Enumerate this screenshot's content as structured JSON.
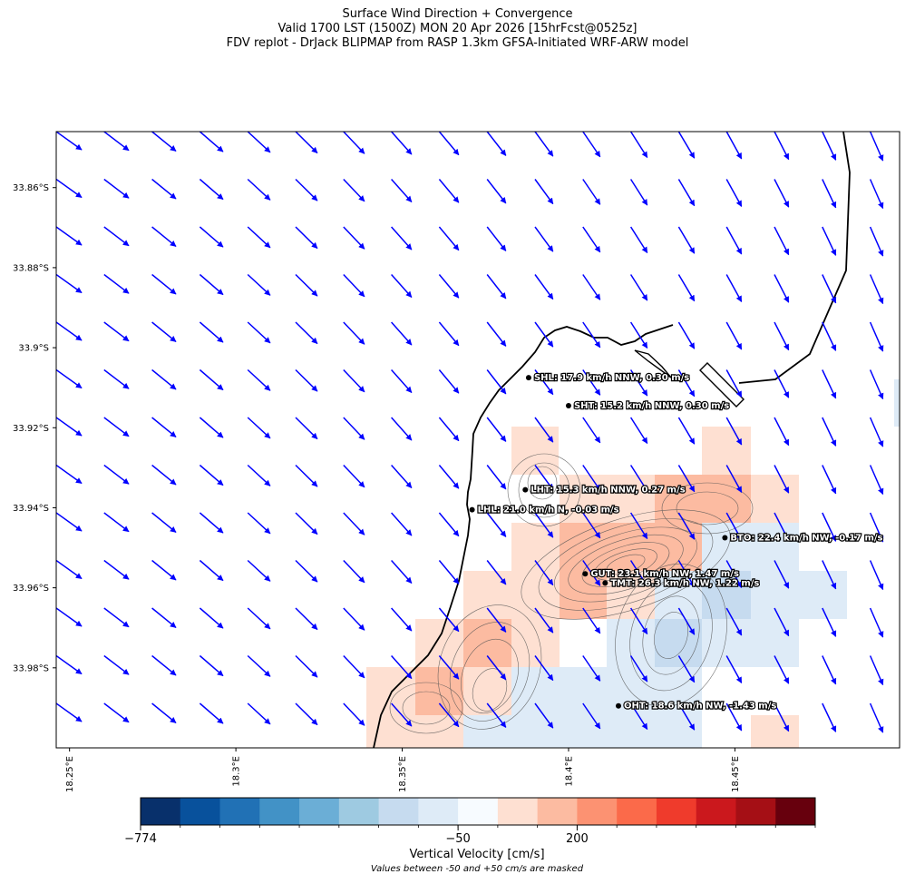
{
  "title": {
    "line1": "Surface Wind Direction + Convergence",
    "line2": "Valid 1700 LST (1500Z) MON 20 Apr 2026 [15hrFcst@0525z]",
    "line3": "FDV replot - DrJack BLIPMAP from RASP 1.3km GFSA-Initiated WRF-ARW model"
  },
  "axes": {
    "lat_ticks": [
      "33.86°S",
      "33.88°S",
      "33.9°S",
      "33.92°S",
      "33.94°S",
      "33.96°S",
      "33.98°S"
    ],
    "lat_values": [
      -33.86,
      -33.88,
      -33.9,
      -33.92,
      -33.94,
      -33.96,
      -33.98
    ],
    "lon_ticks": [
      "18.25°E",
      "18.3°E",
      "18.35°E",
      "18.4°E",
      "18.45°E"
    ],
    "lon_values": [
      18.25,
      18.3,
      18.35,
      18.4,
      18.45
    ],
    "lon_range": [
      18.246,
      18.4995
    ],
    "lat_range": [
      -34.0,
      -33.846
    ]
  },
  "stations": [
    {
      "id": "SHL",
      "label": "SHL: 17.9 km/h NNW, 0.30 m/s",
      "lon": 18.388,
      "lat": -33.9075
    },
    {
      "id": "SHT",
      "label": "SHT: 15.2 km/h NNW, 0.30 m/s",
      "lon": 18.4,
      "lat": -33.9145
    },
    {
      "id": "LHT",
      "label": "LHT: 15.3 km/h NNW, 0.27 m/s",
      "lon": 18.387,
      "lat": -33.9355
    },
    {
      "id": "LHL",
      "label": "LHL: 21.0 km/h N, -0.03 m/s",
      "lon": 18.371,
      "lat": -33.9405
    },
    {
      "id": "BTO",
      "label": "BTO: 22.4 km/h NW, -0.17 m/s",
      "lon": 18.447,
      "lat": -33.9475
    },
    {
      "id": "GUT",
      "label": "GUT: 23.1 km/h NW, 1.47 m/s",
      "lon": 18.405,
      "lat": -33.9565
    },
    {
      "id": "TMT",
      "label": "TMT: 26.3 km/h NW, 1.22 m/s",
      "lon": 18.411,
      "lat": -33.9588
    },
    {
      "id": "OHT",
      "label": "OHT: 18.6 km/h NW, -1.43 m/s",
      "lon": 18.415,
      "lat": -33.9895
    }
  ],
  "colorbar": {
    "label": "Vertical Velocity [cm/s]",
    "note": "Values between -50 and +50 cm/s are masked",
    "tick_labels": [
      "−774",
      "−50",
      "200"
    ],
    "colors": [
      "#08306b",
      "#08519c",
      "#2171b5",
      "#4292c6",
      "#6baed6",
      "#9ecae1",
      "#c6dbef",
      "#deebf7",
      "#f7fbff",
      "#fee0d2",
      "#fcbba1",
      "#fc9272",
      "#fb6a4a",
      "#ef3b2c",
      "#cb181d",
      "#a50f15",
      "#67000d"
    ]
  },
  "colors": {
    "wind_arrows": "#0000ff",
    "coastline": "#000000",
    "terrain_contours": "#555555"
  }
}
